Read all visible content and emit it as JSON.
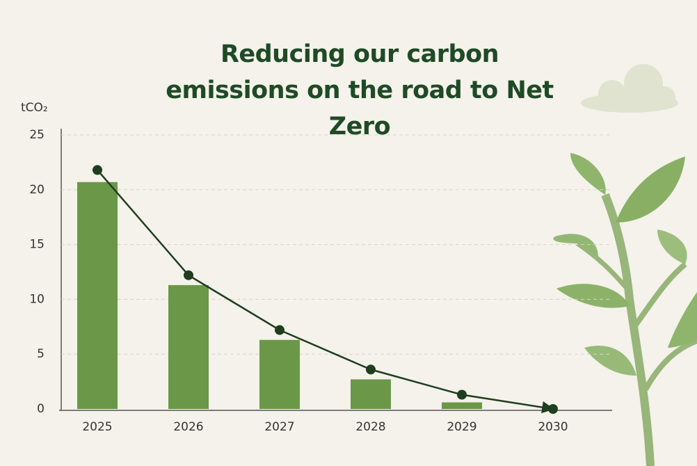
{
  "chart_data": {
    "type": "bar",
    "title": "Reducing our carbon emissions on the road to Net Zero",
    "y_label": "tCO₂",
    "categories": [
      "2025",
      "2026",
      "2027",
      "2028",
      "2029",
      "2030"
    ],
    "series": [
      {
        "type": "bar",
        "color": "#6a9848",
        "values": [
          20.7,
          11.3,
          6.3,
          2.7,
          0.6,
          null
        ]
      },
      {
        "type": "line",
        "color": "#1f3d1f",
        "values": [
          21.8,
          12.2,
          7.2,
          3.6,
          1.3,
          0
        ]
      }
    ],
    "ylim": [
      0,
      25
    ],
    "yticks": [
      0,
      5,
      10,
      15,
      20,
      25
    ],
    "grid": true
  }
}
